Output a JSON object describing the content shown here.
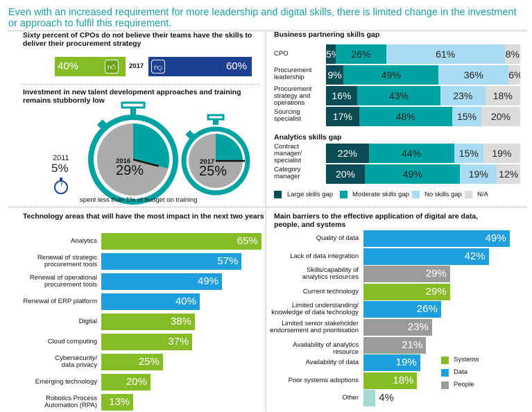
{
  "headline": "Even with an increased requirement for more leadership and digital skills, there is limited change in the investment or approach to fulfil this requirement.",
  "colors": {
    "green": "#86bc25",
    "dark_navy": "#1c3f94",
    "teal": "#00a3a1",
    "dark_teal": "#0a4c54",
    "blue": "#1f9fdd",
    "light_blue": "#a9dcf2",
    "grey": "#9b9b9b",
    "light_grey": "#dcdcdc",
    "light_teal": "#a4d9d2"
  },
  "cpo_skills": {
    "title": "Sixty percent of CPOs do not believe their teams have the skills to deliver their procurement strategy",
    "year": "2017",
    "positive_icon": "thumbs-up-icon",
    "negative_icon": "thumbs-down-icon",
    "positive_label": "40%",
    "negative_label": "60%"
  },
  "investment": {
    "title": "Investment in new talent development approaches and training remains stubbornly low",
    "y2011_year": "2011",
    "y2011_value": "5%",
    "y2016_year": "2016",
    "y2016_value": "29%",
    "y2017_year": "2017",
    "y2017_value": "25%",
    "caption": "spent less than 1% of budget on training"
  },
  "business_partnering": {
    "title": "Business partnering skills gap"
  },
  "analytics_gap": {
    "title": "Analytics skills gap"
  },
  "skills_legend": [
    "Large skills gap",
    "Moderate skills gap",
    "No skills gap",
    "N/A"
  ],
  "technology": {
    "title": "Technology areas that will have the most impact in the next two years"
  },
  "barriers": {
    "title": "Main barriers to the effective application of digital are data, people, and systems",
    "legend": [
      "Systems",
      "Data",
      "People"
    ]
  },
  "chart_data": [
    {
      "type": "bar",
      "id": "cpo_skills",
      "title": "Sixty percent of CPOs do not believe their teams have the skills to deliver their procurement strategy",
      "categories": [
        "2017"
      ],
      "series": [
        {
          "values": [
            40
          ]
        },
        {
          "values": [
            60
          ]
        }
      ]
    },
    {
      "type": "pie",
      "id": "training_spend",
      "title": "Investment in new talent development approaches and training remains stubbornly low",
      "categories": [
        "2011",
        "2016",
        "2017"
      ],
      "values": [
        5,
        29,
        25
      ],
      "annotations": [
        "spent less than 1% of budget on training"
      ]
    },
    {
      "type": "bar",
      "id": "business_partnering",
      "stacked": true,
      "title": "Business partnering skills gap",
      "categories": [
        "CPO",
        "Procurement leadership",
        "Procurement strategy and operations",
        "Sourcing specialist"
      ],
      "series": [
        {
          "name": "Large skills gap",
          "values": [
            5,
            9,
            16,
            17
          ]
        },
        {
          "name": "Moderate skills gap",
          "values": [
            26,
            49,
            43,
            48
          ]
        },
        {
          "name": "No skills gap",
          "values": [
            61,
            36,
            23,
            15
          ]
        },
        {
          "name": "N/A",
          "values": [
            8,
            6,
            18,
            20
          ]
        }
      ]
    },
    {
      "type": "bar",
      "id": "analytics_gap",
      "stacked": true,
      "title": "Analytics skills gap",
      "categories": [
        "Contract manager/ specialist",
        "Category manager"
      ],
      "series": [
        {
          "name": "Large skills gap",
          "values": [
            22,
            20
          ]
        },
        {
          "name": "Moderate skills gap",
          "values": [
            44,
            49
          ]
        },
        {
          "name": "No skills gap",
          "values": [
            15,
            19
          ]
        },
        {
          "name": "N/A",
          "values": [
            19,
            12
          ]
        }
      ]
    },
    {
      "type": "bar",
      "id": "technology",
      "orientation": "horizontal",
      "title": "Technology areas that will have the most impact in the next two years",
      "categories": [
        "Analytics",
        "Renewal of strategic procurement tools",
        "Renewal of operational procurement tools",
        "Renewal of ERP platform",
        "Digital",
        "Cloud computing",
        "Cybersecurity/ data privacy",
        "Emerging technology",
        "Robotics Process Automation (RPA)"
      ],
      "values": [
        65,
        57,
        49,
        40,
        38,
        37,
        25,
        20,
        13
      ],
      "bar_colors": [
        "green",
        "blue",
        "blue",
        "blue",
        "green",
        "green",
        "green",
        "green",
        "green"
      ]
    },
    {
      "type": "bar",
      "id": "barriers",
      "orientation": "horizontal",
      "title": "Main barriers to the effective application of digital are data, people, and systems",
      "categories": [
        "Quality of data",
        "Lack of data integration",
        "Skills/capability of analytics resources",
        "Current technology",
        "Limited understanding/ knowledge of data technology",
        "Limited senior stakeholder endorsement and prioritisation",
        "Availability of analytics resource",
        "Availability of data",
        "Poor systems adoptions",
        "Other"
      ],
      "values": [
        49,
        42,
        29,
        29,
        26,
        23,
        21,
        19,
        18,
        4
      ],
      "bar_colors": [
        "blue",
        "blue",
        "grey",
        "green",
        "blue",
        "grey",
        "grey",
        "blue",
        "green",
        "light_teal"
      ],
      "legend": [
        "Systems",
        "Data",
        "People"
      ]
    }
  ]
}
